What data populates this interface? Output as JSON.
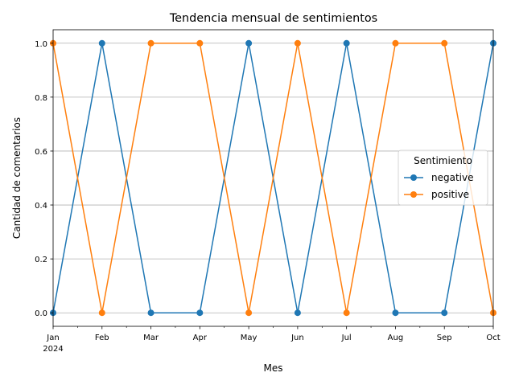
{
  "chart_data": {
    "type": "line",
    "title": "Tendencia mensual de sentimientos",
    "xlabel": "Mes",
    "ylabel": "Cantidad de comentarios",
    "categories": [
      "Jan",
      "Feb",
      "Mar",
      "Apr",
      "May",
      "Jun",
      "Jul",
      "Aug",
      "Sep",
      "Oct"
    ],
    "year_label": "2024",
    "yticks": [
      "0.0",
      "0.2",
      "0.4",
      "0.6",
      "0.8",
      "1.0"
    ],
    "ylim": [
      -0.05,
      1.05
    ],
    "grid": "y-major",
    "legend": {
      "title": "Sentimiento",
      "placement": "center-right"
    },
    "series": [
      {
        "name": "negative",
        "color": "#1f77b4",
        "values": [
          0,
          1,
          0,
          0,
          1,
          0,
          1,
          0,
          0,
          1
        ]
      },
      {
        "name": "positive",
        "color": "#ff7f0e",
        "values": [
          1,
          0,
          1,
          1,
          0,
          1,
          0,
          1,
          1,
          0
        ]
      }
    ]
  }
}
